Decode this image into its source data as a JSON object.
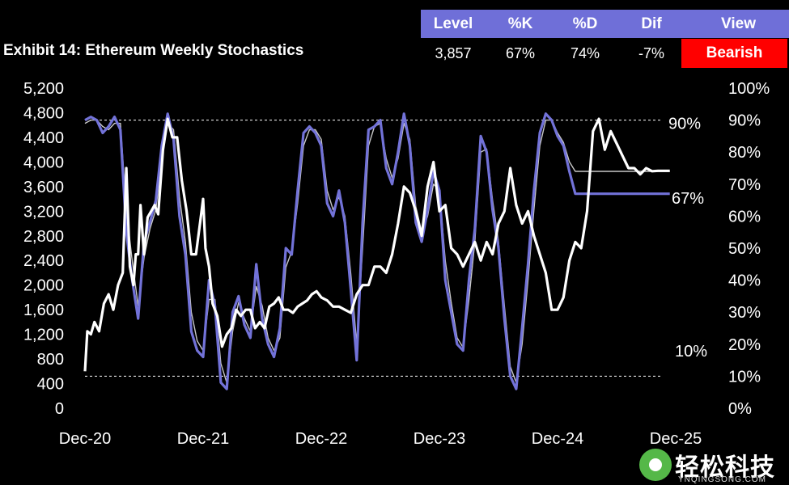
{
  "title": "Exhibit 14: Ethereum Weekly Stochastics",
  "summary": {
    "headers": [
      "Level",
      "%K",
      "%D",
      "Dif",
      "View"
    ],
    "values": [
      "3,857",
      "67%",
      "74%",
      "-7%"
    ],
    "view": "Bearish",
    "header_color": "#6f6fd8",
    "view_color": "#ff0000"
  },
  "chart_data": {
    "type": "line",
    "x_ticks": [
      "Dec-20",
      "Dec-21",
      "Dec-22",
      "Dec-23",
      "Dec-24",
      "Dec-25"
    ],
    "y_left": {
      "ticks": [
        "5,200",
        "4,800",
        "4,400",
        "4,000",
        "3,600",
        "3,200",
        "2,800",
        "2,400",
        "2,000",
        "1,600",
        "1,200",
        "800",
        "400",
        "0"
      ],
      "range": [
        0,
        5200
      ]
    },
    "y_right": {
      "ticks": [
        "100%",
        "90%",
        "80%",
        "70%",
        "60%",
        "50%",
        "40%",
        "30%",
        "20%",
        "10%",
        "0%"
      ],
      "range": [
        0,
        100
      ]
    },
    "reference_lines": [
      {
        "value": 90,
        "label": "90%"
      },
      {
        "value": 10,
        "label": "10%"
      }
    ],
    "end_label": "67%",
    "colors": {
      "price": "#ffffff",
      "k": "#7272d8",
      "d": "#c8c8c8",
      "ref": "#ffffff"
    },
    "series": [
      {
        "axis": "left",
        "x": [
          0,
          0.02,
          0.05,
          0.08,
          0.12,
          0.16,
          0.2,
          0.24,
          0.28,
          0.32,
          0.35,
          0.38,
          0.41,
          0.43,
          0.45,
          0.47,
          0.5,
          0.53,
          0.56,
          0.59,
          0.62,
          0.66,
          0.7,
          0.74,
          0.78,
          0.82,
          0.86,
          0.9,
          0.94,
          0.98,
          1.0,
          1.02,
          1.05,
          1.08,
          1.12,
          1.16,
          1.2,
          1.24,
          1.28,
          1.32,
          1.36,
          1.4,
          1.44,
          1.48,
          1.52,
          1.56,
          1.6,
          1.64,
          1.68,
          1.72,
          1.76,
          1.8,
          1.84,
          1.88,
          1.92,
          1.96,
          2.0,
          2.05,
          2.1,
          2.15,
          2.2,
          2.25,
          2.3,
          2.35,
          2.4,
          2.45,
          2.5,
          2.55,
          2.6,
          2.65,
          2.7,
          2.75,
          2.8,
          2.85,
          2.9,
          2.95,
          3.0,
          3.05,
          3.1,
          3.15,
          3.2,
          3.25,
          3.3,
          3.35,
          3.4,
          3.45,
          3.5,
          3.55,
          3.6,
          3.65,
          3.7,
          3.75,
          3.8,
          3.85,
          3.9,
          3.95,
          4.0,
          4.05,
          4.1,
          4.15,
          4.2,
          4.25,
          4.3,
          4.35,
          4.4,
          4.45,
          4.5,
          4.55,
          4.6,
          4.65,
          4.7,
          4.75,
          4.8,
          4.85,
          4.9,
          4.95
        ],
        "values": [
          600,
          1250,
          1200,
          1400,
          1250,
          1700,
          1850,
          1600,
          2000,
          2200,
          3900,
          2300,
          2000,
          2500,
          2500,
          3300,
          2500,
          3100,
          3200,
          3300,
          3150,
          4200,
          4700,
          4400,
          4400,
          3700,
          3200,
          2500,
          2500,
          3100,
          3400,
          2600,
          2300,
          1700,
          1500,
          1000,
          1200,
          1300,
          1600,
          1500,
          1600,
          1600,
          1300,
          1400,
          1300,
          1650,
          1700,
          1800,
          1600,
          1600,
          1550,
          1650,
          1700,
          1750,
          1850,
          1900,
          1800,
          1750,
          1650,
          1650,
          1600,
          1550,
          1850,
          2000,
          2000,
          2300,
          2300,
          2200,
          2500,
          3000,
          3600,
          3500,
          3200,
          2800,
          3600,
          4000,
          3200,
          3300,
          2600,
          2500,
          2300,
          2500,
          2700,
          2400,
          2700,
          2500,
          3000,
          3200,
          3900,
          3300,
          3000,
          3200,
          2800,
          2500,
          2200,
          1600,
          1600,
          1800,
          2400,
          2700,
          2600,
          3200,
          4500,
          4700,
          4200,
          4500,
          4300,
          4100,
          3900,
          3900,
          3800,
          3900,
          3850,
          3857,
          3857,
          3857
        ],
        "name": ""
      },
      {
        "axis": "right",
        "x": [
          0,
          0.05,
          0.1,
          0.15,
          0.2,
          0.25,
          0.3,
          0.35,
          0.4,
          0.45,
          0.5,
          0.55,
          0.6,
          0.65,
          0.7,
          0.75,
          0.8,
          0.85,
          0.9,
          0.95,
          1.0,
          1.05,
          1.1,
          1.15,
          1.2,
          1.25,
          1.3,
          1.35,
          1.4,
          1.45,
          1.5,
          1.55,
          1.6,
          1.65,
          1.7,
          1.75,
          1.8,
          1.85,
          1.9,
          1.95,
          2.0,
          2.05,
          2.1,
          2.15,
          2.2,
          2.25,
          2.3,
          2.35,
          2.4,
          2.45,
          2.5,
          2.55,
          2.6,
          2.65,
          2.7,
          2.75,
          2.8,
          2.85,
          2.9,
          2.95,
          3.0,
          3.05,
          3.1,
          3.15,
          3.2,
          3.25,
          3.3,
          3.35,
          3.4,
          3.45,
          3.5,
          3.55,
          3.6,
          3.65,
          3.7,
          3.75,
          3.8,
          3.85,
          3.9,
          3.95,
          4.0,
          4.05,
          4.1,
          4.15,
          4.2,
          4.25,
          4.3,
          4.35,
          4.4,
          4.45,
          4.5,
          4.55,
          4.6,
          4.65,
          4.7,
          4.75,
          4.8,
          4.85,
          4.9,
          4.95
        ],
        "values": [
          90,
          91,
          90,
          86,
          88,
          91,
          87,
          55,
          40,
          28,
          52,
          58,
          65,
          82,
          92,
          84,
          60,
          48,
          24,
          18,
          16,
          40,
          32,
          8,
          6,
          30,
          35,
          26,
          22,
          45,
          28,
          20,
          16,
          25,
          50,
          48,
          68,
          86,
          88,
          86,
          82,
          64,
          60,
          68,
          58,
          37,
          15,
          58,
          87,
          88,
          90,
          75,
          70,
          80,
          92,
          82,
          58,
          52,
          62,
          74,
          68,
          40,
          30,
          20,
          18,
          40,
          56,
          85,
          80,
          62,
          50,
          28,
          10,
          6,
          25,
          45,
          68,
          86,
          92,
          90,
          85,
          82,
          74,
          67,
          67,
          67,
          67,
          67,
          67,
          67,
          67,
          67,
          67,
          67,
          67,
          67,
          67,
          67,
          67,
          67
        ],
        "name": ""
      },
      {
        "axis": "right",
        "x": [
          0,
          0.05,
          0.1,
          0.15,
          0.2,
          0.25,
          0.3,
          0.35,
          0.4,
          0.45,
          0.5,
          0.55,
          0.6,
          0.65,
          0.7,
          0.75,
          0.8,
          0.85,
          0.9,
          0.95,
          1.0,
          1.05,
          1.1,
          1.15,
          1.2,
          1.25,
          1.3,
          1.35,
          1.4,
          1.45,
          1.5,
          1.55,
          1.6,
          1.65,
          1.7,
          1.75,
          1.8,
          1.85,
          1.9,
          1.95,
          2.0,
          2.05,
          2.1,
          2.15,
          2.2,
          2.25,
          2.3,
          2.35,
          2.4,
          2.45,
          2.5,
          2.55,
          2.6,
          2.65,
          2.7,
          2.75,
          2.8,
          2.85,
          2.9,
          2.95,
          3.0,
          3.05,
          3.1,
          3.15,
          3.2,
          3.25,
          3.3,
          3.35,
          3.4,
          3.45,
          3.5,
          3.55,
          3.6,
          3.65,
          3.7,
          3.75,
          3.8,
          3.85,
          3.9,
          3.95,
          4.0,
          4.05,
          4.1,
          4.15,
          4.2,
          4.25,
          4.3,
          4.35,
          4.4,
          4.45,
          4.5,
          4.55,
          4.6,
          4.65,
          4.7,
          4.75,
          4.8,
          4.85,
          4.9,
          4.95
        ],
        "values": [
          89,
          90,
          90,
          88,
          87,
          89,
          89,
          62,
          46,
          32,
          47,
          56,
          62,
          78,
          89,
          87,
          66,
          52,
          30,
          21,
          18,
          34,
          34,
          14,
          8,
          24,
          33,
          28,
          24,
          38,
          32,
          22,
          18,
          22,
          44,
          49,
          64,
          82,
          87,
          87,
          84,
          68,
          62,
          66,
          60,
          42,
          20,
          50,
          82,
          88,
          89,
          78,
          72,
          78,
          89,
          84,
          63,
          55,
          60,
          70,
          68,
          46,
          33,
          22,
          19,
          34,
          52,
          80,
          81,
          65,
          52,
          32,
          13,
          8,
          20,
          40,
          62,
          82,
          90,
          90,
          86,
          83,
          77,
          74,
          74,
          74,
          74,
          74,
          74,
          74,
          74,
          74,
          74,
          74,
          74,
          74,
          74,
          74,
          74,
          74
        ],
        "name": ""
      }
    ]
  }
}
